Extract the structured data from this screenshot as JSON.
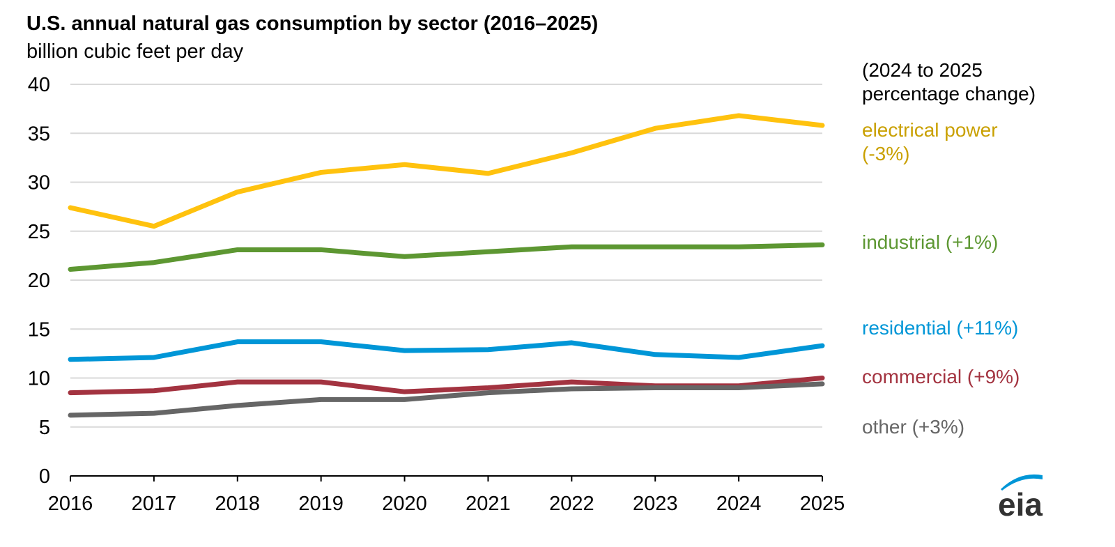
{
  "chart_data": {
    "type": "line",
    "title": "U.S. annual natural gas consumption by sector (2016–2025)",
    "ylabel": "billion cubic feet per day",
    "note": "(2024 to 2025 percentage change)",
    "note_lines": [
      "(2024 to 2025",
      "percentage change)"
    ],
    "x": [
      2016,
      2017,
      2018,
      2019,
      2020,
      2021,
      2022,
      2023,
      2024,
      2025
    ],
    "ylim": [
      0,
      40
    ],
    "yticks": [
      0,
      5,
      10,
      15,
      20,
      25,
      30,
      35,
      40
    ],
    "grid": true,
    "legend": "right, inline labels at line ends",
    "series": [
      {
        "name": "electrical power",
        "label_lines": [
          "electrical power",
          "(-3%)"
        ],
        "color": "#FFC20E",
        "text_color": "#C9A000",
        "values": [
          27.4,
          25.5,
          29.0,
          31.0,
          31.8,
          30.9,
          33.0,
          35.5,
          36.8,
          35.8
        ]
      },
      {
        "name": "industrial",
        "label_lines": [
          "industrial (+1%)"
        ],
        "color": "#5D9732",
        "text_color": "#5D9732",
        "values": [
          21.1,
          21.8,
          23.1,
          23.1,
          22.4,
          22.9,
          23.4,
          23.4,
          23.4,
          23.6
        ]
      },
      {
        "name": "residential",
        "label_lines": [
          "residential (+11%)"
        ],
        "color": "#0096D7",
        "text_color": "#0096D7",
        "values": [
          11.9,
          12.1,
          13.7,
          13.7,
          12.8,
          12.9,
          13.6,
          12.4,
          12.1,
          13.3
        ]
      },
      {
        "name": "commercial",
        "label_lines": [
          "commercial (+9%)"
        ],
        "color": "#A33340",
        "text_color": "#A33340",
        "values": [
          8.5,
          8.7,
          9.6,
          9.6,
          8.6,
          9.0,
          9.6,
          9.2,
          9.2,
          10.0
        ]
      },
      {
        "name": "other",
        "label_lines": [
          "other (+3%)"
        ],
        "color": "#666666",
        "text_color": "#666666",
        "values": [
          6.2,
          6.4,
          7.2,
          7.8,
          7.8,
          8.5,
          8.9,
          9.0,
          9.0,
          9.4
        ]
      }
    ]
  },
  "logo": {
    "text": "eia",
    "arc_color": "#0096D7"
  }
}
